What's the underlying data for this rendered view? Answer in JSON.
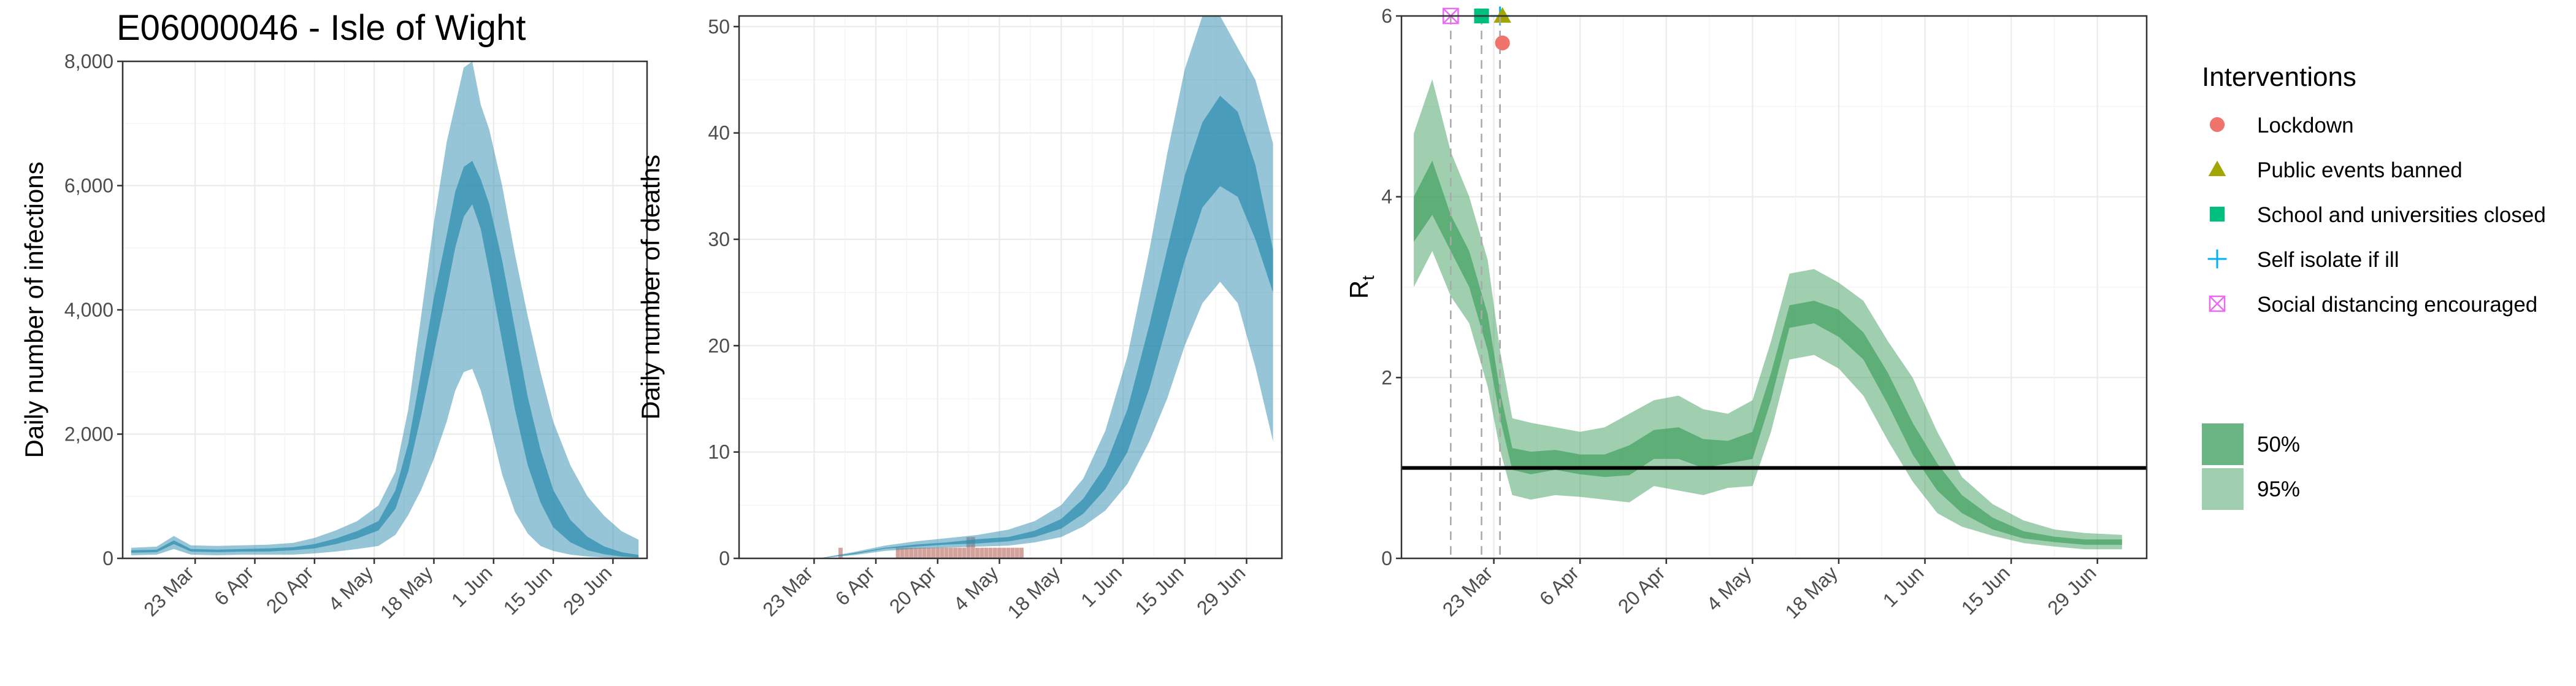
{
  "title": "E06000046 - Isle of Wight",
  "colors": {
    "infections": "#2b8cae",
    "deaths_obs": "#c98b84",
    "rt": "#41a061",
    "lockdown": "#f0746b",
    "public_events": "#a3a500",
    "schools": "#00bf7d",
    "self_isolate": "#00b0f6",
    "social_distancing": "#e76bf3"
  },
  "chart_data": [
    {
      "type": "area",
      "id": "infections",
      "ylabel": "Daily number of infections",
      "xlabel": "",
      "xlim": [
        "2020-03-06",
        "2020-07-07"
      ],
      "ylim": [
        0,
        8000
      ],
      "y_ticks": [
        0,
        2000,
        4000,
        6000,
        8000
      ],
      "y_tick_labels": [
        "0",
        "2,000",
        "4,000",
        "6,000",
        "8,000"
      ],
      "x_ticks": [
        "2020-03-23",
        "2020-04-06",
        "2020-04-20",
        "2020-05-04",
        "2020-05-18",
        "2020-06-01",
        "2020-06-15",
        "2020-06-29"
      ],
      "x_tick_labels": [
        "23 Mar",
        "6 Apr",
        "20 Apr",
        "4 May",
        "18 May",
        "1 Jun",
        "15 Jun",
        "29 Jun"
      ],
      "x": [
        "2020-03-08",
        "2020-03-14",
        "2020-03-18",
        "2020-03-22",
        "2020-03-28",
        "2020-04-03",
        "2020-04-09",
        "2020-04-15",
        "2020-04-20",
        "2020-04-25",
        "2020-04-30",
        "2020-05-05",
        "2020-05-09",
        "2020-05-12",
        "2020-05-15",
        "2020-05-18",
        "2020-05-21",
        "2020-05-23",
        "2020-05-25",
        "2020-05-27",
        "2020-05-29",
        "2020-05-31",
        "2020-06-03",
        "2020-06-06",
        "2020-06-09",
        "2020-06-12",
        "2020-06-15",
        "2020-06-19",
        "2020-06-23",
        "2020-06-27",
        "2020-07-01",
        "2020-07-05"
      ],
      "series": [
        {
          "interval": "95%",
          "lower": [
            50,
            60,
            150,
            60,
            50,
            60,
            60,
            60,
            80,
            110,
            150,
            200,
            380,
            700,
            1100,
            1600,
            2200,
            2700,
            3000,
            3050,
            2700,
            2200,
            1350,
            750,
            400,
            200,
            120,
            60,
            30,
            15,
            8,
            5
          ],
          "upper": [
            170,
            190,
            360,
            210,
            200,
            210,
            220,
            250,
            330,
            450,
            600,
            850,
            1400,
            2400,
            3900,
            5400,
            6700,
            7300,
            7900,
            8000,
            7300,
            6900,
            6000,
            4900,
            3900,
            3000,
            2200,
            1500,
            1000,
            680,
            440,
            300
          ]
        },
        {
          "interval": "50%",
          "lower": [
            90,
            100,
            230,
            110,
            100,
            110,
            110,
            130,
            160,
            230,
            320,
            450,
            800,
            1400,
            2300,
            3300,
            4300,
            5000,
            5500,
            5700,
            5300,
            4600,
            3500,
            2400,
            1500,
            900,
            500,
            260,
            130,
            65,
            30,
            15
          ],
          "upper": [
            130,
            140,
            290,
            150,
            140,
            150,
            160,
            180,
            230,
            320,
            440,
            600,
            1100,
            1850,
            3000,
            4200,
            5200,
            5900,
            6300,
            6400,
            6100,
            5700,
            4800,
            3700,
            2600,
            1750,
            1100,
            620,
            350,
            190,
            100,
            55
          ]
        }
      ]
    },
    {
      "type": "area",
      "id": "deaths",
      "ylabel": "Daily number of deaths",
      "xlabel": "",
      "xlim": [
        "2020-03-06",
        "2020-07-07"
      ],
      "ylim": [
        0,
        51
      ],
      "y_ticks": [
        0,
        10,
        20,
        30,
        40,
        50
      ],
      "y_tick_labels": [
        "0",
        "10",
        "20",
        "30",
        "40",
        "50"
      ],
      "x_ticks": [
        "2020-03-23",
        "2020-04-06",
        "2020-04-20",
        "2020-05-04",
        "2020-05-18",
        "2020-06-01",
        "2020-06-15",
        "2020-06-29"
      ],
      "x_tick_labels": [
        "23 Mar",
        "6 Apr",
        "20 Apr",
        "4 May",
        "18 May",
        "1 Jun",
        "15 Jun",
        "29 Jun"
      ],
      "x": [
        "2020-03-24",
        "2020-04-01",
        "2020-04-08",
        "2020-04-15",
        "2020-04-22",
        "2020-04-29",
        "2020-05-06",
        "2020-05-12",
        "2020-05-18",
        "2020-05-23",
        "2020-05-28",
        "2020-06-02",
        "2020-06-07",
        "2020-06-11",
        "2020-06-15",
        "2020-06-19",
        "2020-06-23",
        "2020-06-27",
        "2020-07-01",
        "2020-07-05"
      ],
      "series": [
        {
          "interval": "95%",
          "lower": [
            0,
            0.3,
            0.7,
            0.9,
            1.0,
            1.1,
            1.2,
            1.5,
            2.0,
            3.0,
            4.5,
            7.0,
            11,
            15,
            20,
            24,
            26,
            24,
            18,
            11
          ],
          "upper": [
            0,
            0.6,
            1.2,
            1.6,
            1.9,
            2.2,
            2.7,
            3.5,
            5.0,
            7.5,
            12,
            19,
            29,
            38,
            46,
            51,
            51,
            48,
            45,
            39
          ]
        },
        {
          "interval": "50%",
          "lower": [
            0,
            0.4,
            0.9,
            1.1,
            1.3,
            1.4,
            1.6,
            2.0,
            2.8,
            4.2,
            6.5,
            10,
            16,
            22,
            28,
            33,
            35,
            34,
            30,
            25
          ],
          "upper": [
            0,
            0.5,
            1.0,
            1.3,
            1.5,
            1.8,
            2.0,
            2.6,
            3.7,
            5.6,
            8.7,
            14,
            22,
            29,
            36,
            41,
            43.5,
            42,
            37,
            29
          ]
        }
      ],
      "observed_deaths": {
        "x": [
          "2020-03-29",
          "2020-04-11",
          "2020-04-12",
          "2020-04-13",
          "2020-04-14",
          "2020-04-15",
          "2020-04-16",
          "2020-04-17",
          "2020-04-18",
          "2020-04-19",
          "2020-04-20",
          "2020-04-21",
          "2020-04-22",
          "2020-04-23",
          "2020-04-24",
          "2020-04-25",
          "2020-04-26",
          "2020-04-27",
          "2020-04-28",
          "2020-04-29",
          "2020-04-30",
          "2020-05-01",
          "2020-05-02",
          "2020-05-03",
          "2020-05-04",
          "2020-05-05",
          "2020-05-06",
          "2020-05-07",
          "2020-05-08",
          "2020-05-09"
        ],
        "values": [
          1,
          1,
          1,
          1,
          1,
          1,
          1,
          1,
          1,
          1,
          1,
          1,
          1,
          1,
          1,
          1,
          1,
          2,
          2,
          1,
          1,
          1,
          1,
          1,
          1,
          1,
          1,
          1,
          1,
          1
        ]
      }
    },
    {
      "type": "area",
      "id": "rt",
      "ylabel": "R",
      "ylabel_subscript": "t",
      "xlabel": "",
      "xlim": [
        "2020-03-08",
        "2020-07-07"
      ],
      "ylim": [
        0,
        6
      ],
      "y_ticks": [
        0,
        2,
        4,
        6
      ],
      "y_tick_labels": [
        "0",
        "2",
        "4",
        "6"
      ],
      "x_ticks": [
        "2020-03-23",
        "2020-04-06",
        "2020-04-20",
        "2020-05-04",
        "2020-05-18",
        "2020-06-01",
        "2020-06-15",
        "2020-06-29"
      ],
      "x_tick_labels": [
        "23 Mar",
        "6 Apr",
        "20 Apr",
        "4 May",
        "18 May",
        "1 Jun",
        "15 Jun",
        "29 Jun"
      ],
      "reference_line": 1,
      "x": [
        "2020-03-10",
        "2020-03-13",
        "2020-03-16",
        "2020-03-19",
        "2020-03-22",
        "2020-03-24",
        "2020-03-26",
        "2020-03-29",
        "2020-04-02",
        "2020-04-06",
        "2020-04-10",
        "2020-04-14",
        "2020-04-18",
        "2020-04-22",
        "2020-04-26",
        "2020-04-30",
        "2020-05-04",
        "2020-05-07",
        "2020-05-10",
        "2020-05-14",
        "2020-05-18",
        "2020-05-22",
        "2020-05-26",
        "2020-05-30",
        "2020-06-03",
        "2020-06-07",
        "2020-06-12",
        "2020-06-17",
        "2020-06-22",
        "2020-06-27",
        "2020-07-03"
      ],
      "series": [
        {
          "interval": "95%",
          "lower": [
            3.0,
            3.4,
            2.9,
            2.6,
            1.9,
            1.2,
            0.7,
            0.65,
            0.7,
            0.68,
            0.65,
            0.62,
            0.8,
            0.75,
            0.7,
            0.78,
            0.8,
            1.4,
            2.2,
            2.25,
            2.1,
            1.8,
            1.3,
            0.85,
            0.5,
            0.35,
            0.25,
            0.17,
            0.13,
            0.1,
            0.1
          ],
          "upper": [
            4.7,
            5.3,
            4.5,
            4.0,
            3.3,
            2.3,
            1.55,
            1.5,
            1.45,
            1.4,
            1.45,
            1.6,
            1.75,
            1.8,
            1.65,
            1.6,
            1.75,
            2.4,
            3.15,
            3.2,
            3.05,
            2.85,
            2.4,
            2.0,
            1.4,
            0.9,
            0.6,
            0.42,
            0.32,
            0.28,
            0.26
          ]
        },
        {
          "interval": "50%",
          "lower": [
            3.5,
            3.8,
            3.4,
            3.0,
            2.3,
            1.55,
            0.98,
            0.93,
            0.98,
            0.93,
            0.9,
            0.92,
            1.1,
            1.1,
            1.0,
            1.05,
            1.1,
            1.75,
            2.55,
            2.6,
            2.45,
            2.2,
            1.7,
            1.15,
            0.75,
            0.5,
            0.32,
            0.22,
            0.18,
            0.15,
            0.15
          ],
          "upper": [
            4.0,
            4.4,
            3.8,
            3.4,
            2.7,
            1.85,
            1.22,
            1.18,
            1.2,
            1.15,
            1.15,
            1.25,
            1.42,
            1.45,
            1.32,
            1.3,
            1.4,
            2.05,
            2.8,
            2.85,
            2.75,
            2.5,
            2.05,
            1.5,
            1.05,
            0.7,
            0.45,
            0.3,
            0.24,
            0.21,
            0.21
          ]
        }
      ],
      "interventions": [
        {
          "name": "Social distancing encouraged",
          "date": "2020-03-16",
          "shape": "square-cross"
        },
        {
          "name": "School and universities closed",
          "date": "2020-03-21",
          "shape": "square"
        },
        {
          "name": "Self isolate if ill",
          "date": "2020-03-24",
          "shape": "plus"
        },
        {
          "name": "Public events banned",
          "date": "2020-03-24",
          "shape": "triangle"
        },
        {
          "name": "Lockdown",
          "date": "2020-03-24",
          "shape": "circle"
        }
      ]
    }
  ],
  "legend": {
    "title": "Interventions",
    "items": [
      {
        "label": "Lockdown",
        "shape": "circle",
        "color_key": "lockdown"
      },
      {
        "label": "Public events banned",
        "shape": "triangle",
        "color_key": "public_events"
      },
      {
        "label": "School and universities closed",
        "shape": "square",
        "color_key": "schools"
      },
      {
        "label": "Self isolate if ill",
        "shape": "plus",
        "color_key": "self_isolate"
      },
      {
        "label": "Social distancing encouraged",
        "shape": "square-cross",
        "color_key": "social_distancing"
      }
    ],
    "intervals": [
      {
        "label": "50%"
      },
      {
        "label": "95%"
      }
    ]
  }
}
